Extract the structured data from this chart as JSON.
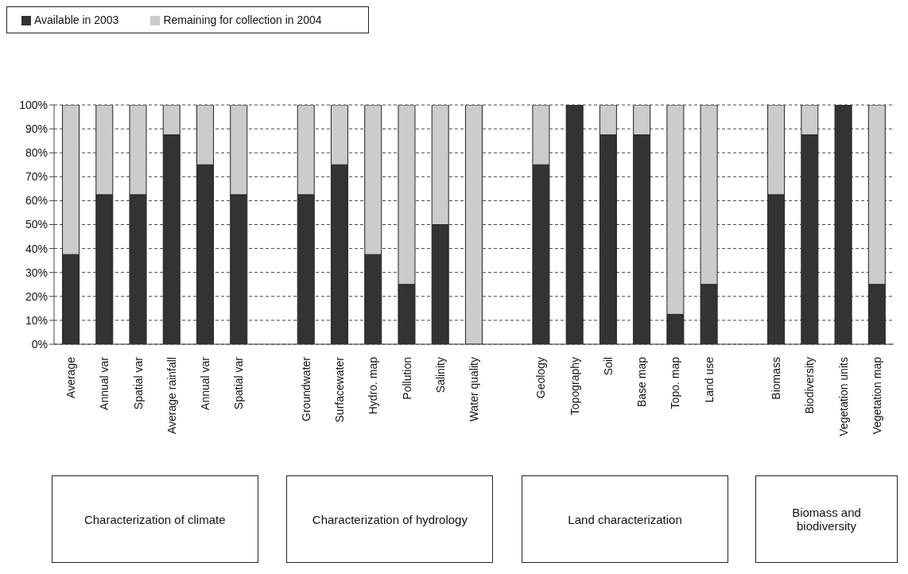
{
  "chart_data": {
    "type": "bar",
    "stacked": true,
    "categories": [
      "Average",
      "Annual var",
      "Spatial var",
      "Average rainfall",
      "Annual var",
      "Spatial var",
      null,
      "Groundwater",
      "Surfacewater",
      "Hydro. map",
      "Pollution",
      "Salinity",
      "Water quality",
      null,
      "Geology",
      "Topography",
      "Soil",
      "Base map",
      "Topo. map",
      "Land use",
      null,
      "Biomass",
      "Biodiversity",
      "Vegetation units",
      "Vegetation map"
    ],
    "series": [
      {
        "name": "Available in 2003",
        "color": "#333333",
        "values": [
          37.5,
          62.5,
          62.5,
          87.5,
          75,
          62.5,
          null,
          62.5,
          75,
          37.5,
          25,
          50,
          0,
          null,
          75,
          100,
          87.5,
          87.5,
          12.5,
          25,
          null,
          62.5,
          87.5,
          100,
          25
        ]
      },
      {
        "name": "Remaining for collection in 2004",
        "color": "#cccccc",
        "values": [
          62.5,
          37.5,
          37.5,
          12.5,
          25,
          37.5,
          null,
          37.5,
          25,
          62.5,
          75,
          50,
          100,
          null,
          25,
          0,
          12.5,
          12.5,
          87.5,
          75,
          null,
          37.5,
          12.5,
          0,
          75
        ]
      }
    ],
    "ylim": [
      0,
      100
    ],
    "yticks": [
      {
        "value": 0,
        "label": "0%"
      },
      {
        "value": 10,
        "label": "10%"
      },
      {
        "value": 20,
        "label": "20%"
      },
      {
        "value": 30,
        "label": "30%"
      },
      {
        "value": 40,
        "label": "40%"
      },
      {
        "value": 50,
        "label": "50%"
      },
      {
        "value": 60,
        "label": "60%"
      },
      {
        "value": 70,
        "label": "70%"
      },
      {
        "value": 80,
        "label": "80%"
      },
      {
        "value": 90,
        "label": "90%"
      },
      {
        "value": 100,
        "label": "100%"
      }
    ],
    "grid": "y",
    "legend": "top left",
    "annotations": [
      "Characterization of climate",
      "Characterization of hydrology",
      "Land characterization",
      "Biomass and biodiversity"
    ]
  }
}
